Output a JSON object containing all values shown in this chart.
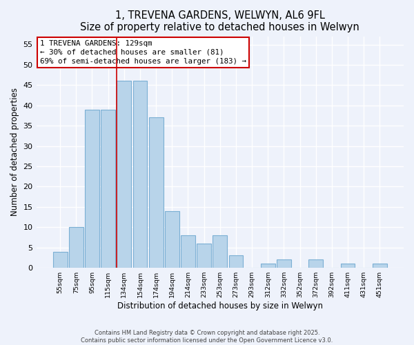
{
  "title": "1, TREVENA GARDENS, WELWYN, AL6 9FL",
  "subtitle": "Size of property relative to detached houses in Welwyn",
  "xlabel": "Distribution of detached houses by size in Welwyn",
  "ylabel": "Number of detached properties",
  "bar_labels": [
    "55sqm",
    "75sqm",
    "95sqm",
    "115sqm",
    "134sqm",
    "154sqm",
    "174sqm",
    "194sqm",
    "214sqm",
    "233sqm",
    "253sqm",
    "273sqm",
    "293sqm",
    "312sqm",
    "332sqm",
    "352sqm",
    "372sqm",
    "392sqm",
    "411sqm",
    "431sqm",
    "451sqm"
  ],
  "bar_values": [
    4,
    10,
    39,
    39,
    46,
    46,
    37,
    14,
    8,
    6,
    8,
    3,
    0,
    1,
    2,
    0,
    2,
    0,
    1,
    0,
    1
  ],
  "bar_color": "#b8d4ea",
  "bar_edge_color": "#7aafd4",
  "marker_bar_index": 4,
  "marker_line_color": "#cc0000",
  "annotation_line1": "1 TREVENA GARDENS: 129sqm",
  "annotation_line2": "← 30% of detached houses are smaller (81)",
  "annotation_line3": "69% of semi-detached houses are larger (183) →",
  "annotation_box_color": "#ffffff",
  "annotation_box_edge_color": "#cc0000",
  "ylim": [
    0,
    57
  ],
  "yticks": [
    0,
    5,
    10,
    15,
    20,
    25,
    30,
    35,
    40,
    45,
    50,
    55
  ],
  "bg_color": "#eef2fb",
  "grid_color": "#ffffff",
  "footer_line1": "Contains HM Land Registry data © Crown copyright and database right 2025.",
  "footer_line2": "Contains public sector information licensed under the Open Government Licence v3.0."
}
